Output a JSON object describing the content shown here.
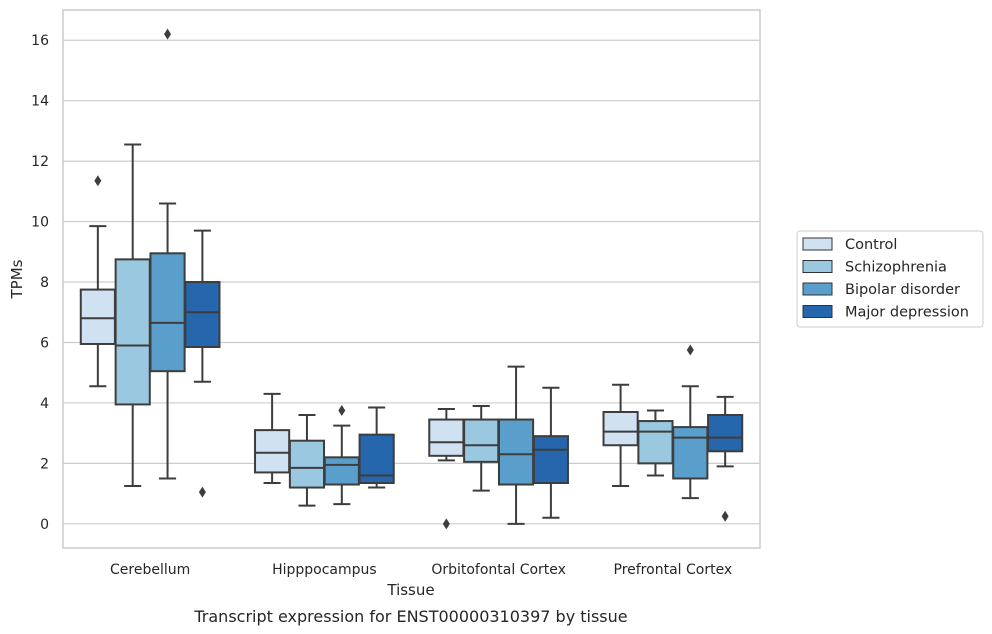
{
  "chart_data": {
    "type": "box",
    "caption": "Transcript expression for ENST00000310397 by tissue",
    "xlabel": "Tissue",
    "ylabel": "TPMs",
    "ylim": [
      -0.8,
      17
    ],
    "yticks": [
      0,
      2,
      4,
      6,
      8,
      10,
      12,
      14,
      16
    ],
    "grid": "horizontal",
    "legend_position": "right",
    "categories": [
      "Cerebellum",
      "Hipppocampus",
      "Orbitofontal Cortex",
      "Prefrontal Cortex"
    ],
    "series": [
      {
        "name": "Control",
        "color": "#d0e1f2",
        "boxes": [
          {
            "whislo": 4.55,
            "q1": 5.95,
            "med": 6.8,
            "q3": 7.75,
            "whishi": 9.85,
            "fliers": [
              11.35
            ]
          },
          {
            "whislo": 1.35,
            "q1": 1.7,
            "med": 2.35,
            "q3": 3.1,
            "whishi": 4.3,
            "fliers": []
          },
          {
            "whislo": 2.1,
            "q1": 2.25,
            "med": 2.7,
            "q3": 3.45,
            "whishi": 3.8,
            "fliers": [
              0.0
            ]
          },
          {
            "whislo": 1.25,
            "q1": 2.6,
            "med": 3.05,
            "q3": 3.7,
            "whishi": 4.6,
            "fliers": []
          }
        ]
      },
      {
        "name": "Schizophrenia",
        "color": "#9ac8e0",
        "boxes": [
          {
            "whislo": 1.25,
            "q1": 3.95,
            "med": 5.9,
            "q3": 8.75,
            "whishi": 12.55,
            "fliers": []
          },
          {
            "whislo": 0.6,
            "q1": 1.2,
            "med": 1.85,
            "q3": 2.75,
            "whishi": 3.6,
            "fliers": []
          },
          {
            "whislo": 1.1,
            "q1": 2.05,
            "med": 2.6,
            "q3": 3.45,
            "whishi": 3.9,
            "fliers": []
          },
          {
            "whislo": 1.6,
            "q1": 2.0,
            "med": 3.05,
            "q3": 3.4,
            "whishi": 3.75,
            "fliers": []
          }
        ]
      },
      {
        "name": "Bipolar disorder",
        "color": "#5a9fcb",
        "boxes": [
          {
            "whislo": 1.5,
            "q1": 5.05,
            "med": 6.65,
            "q3": 8.95,
            "whishi": 10.6,
            "fliers": [
              16.2
            ]
          },
          {
            "whislo": 0.65,
            "q1": 1.3,
            "med": 1.95,
            "q3": 2.2,
            "whishi": 3.25,
            "fliers": [
              3.75
            ]
          },
          {
            "whislo": 0.0,
            "q1": 1.3,
            "med": 2.3,
            "q3": 3.45,
            "whishi": 5.2,
            "fliers": []
          },
          {
            "whislo": 0.85,
            "q1": 1.5,
            "med": 2.85,
            "q3": 3.2,
            "whishi": 4.55,
            "fliers": [
              5.75
            ]
          }
        ]
      },
      {
        "name": "Major depression",
        "color": "#2566ad",
        "boxes": [
          {
            "whislo": 4.7,
            "q1": 5.85,
            "med": 7.0,
            "q3": 8.0,
            "whishi": 9.7,
            "fliers": [
              1.05
            ]
          },
          {
            "whislo": 1.2,
            "q1": 1.35,
            "med": 1.6,
            "q3": 2.95,
            "whishi": 3.85,
            "fliers": []
          },
          {
            "whislo": 0.2,
            "q1": 1.35,
            "med": 2.45,
            "q3": 2.9,
            "whishi": 4.5,
            "fliers": []
          },
          {
            "whislo": 1.9,
            "q1": 2.4,
            "med": 2.85,
            "q3": 3.6,
            "whishi": 4.2,
            "fliers": [
              0.25
            ]
          }
        ]
      }
    ]
  }
}
